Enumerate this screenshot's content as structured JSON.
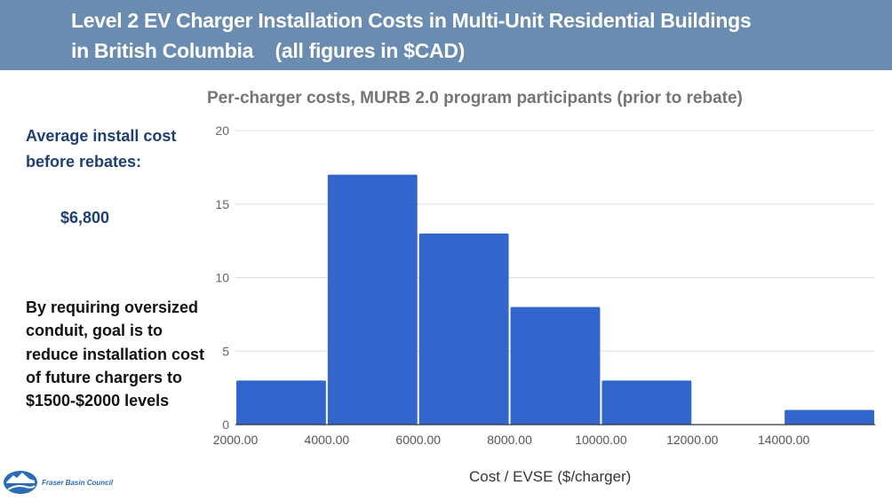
{
  "header": {
    "title_line1": "Level 2 EV Charger Installation Costs in Multi-Unit Residential Buildings",
    "title_line2": "in British Columbia    (all figures in $CAD)"
  },
  "sidebar": {
    "avg_label": "Average install cost before rebates:",
    "avg_value": "$6,800",
    "goal_text": "By requiring oversized conduit, goal is to reduce installation cost of future chargers to $1500-$2000 levels"
  },
  "logo": {
    "icon": "river-mountain-logo-icon",
    "text": "Fraser Basin Council"
  },
  "colors": {
    "header_bg": "#6a8cb1",
    "bar": "#3366cc",
    "sidebar_blue": "#1f3f72",
    "grid": "#dddddd"
  },
  "chart_data": {
    "type": "bar",
    "subtype": "histogram",
    "title": "Per-charger costs, MURB 2.0 program participants (prior to rebate)",
    "xlabel": "Cost / EVSE  ($/charger)",
    "ylabel": "",
    "bins": [
      {
        "start": 2000,
        "end": 4000,
        "count": 3
      },
      {
        "start": 4000,
        "end": 6000,
        "count": 17
      },
      {
        "start": 6000,
        "end": 8000,
        "count": 13
      },
      {
        "start": 8000,
        "end": 10000,
        "count": 8
      },
      {
        "start": 10000,
        "end": 12000,
        "count": 3
      },
      {
        "start": 12000,
        "end": 14000,
        "count": 0
      },
      {
        "start": 14000,
        "end": 16000,
        "count": 1
      }
    ],
    "categories": [
      "2000-4000",
      "4000-6000",
      "6000-8000",
      "8000-10000",
      "10000-12000",
      "12000-14000",
      "14000-16000"
    ],
    "values": [
      3,
      17,
      13,
      8,
      3,
      0,
      1
    ],
    "xlim": [
      2000,
      16000
    ],
    "ylim": [
      0,
      20
    ],
    "x_ticks": [
      "2000.00",
      "4000.00",
      "6000.00",
      "8000.00",
      "10000.00",
      "12000.00",
      "14000.00"
    ],
    "x_tick_values": [
      2000,
      4000,
      6000,
      8000,
      10000,
      12000,
      14000
    ],
    "y_ticks": [
      0,
      5,
      10,
      15,
      20
    ],
    "grid": true,
    "legend": "none"
  }
}
